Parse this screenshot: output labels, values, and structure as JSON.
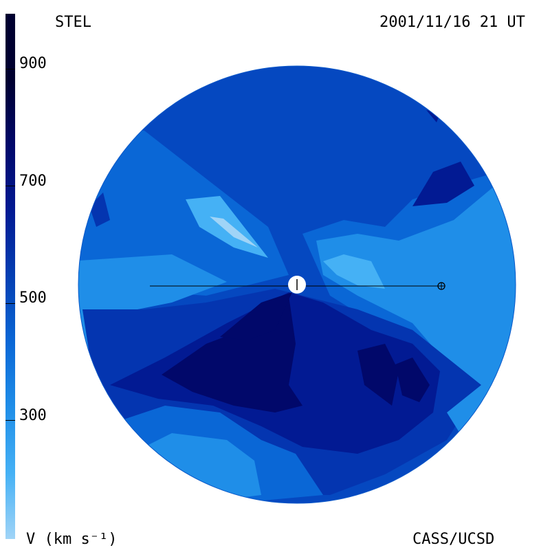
{
  "header": {
    "left_label": "STEL",
    "datetime": "2001/11/16 21 UT"
  },
  "footer": {
    "unit_label": "V (km s⁻¹)",
    "credit": "CASS/UCSD"
  },
  "colorbar": {
    "tick_labels": [
      "900",
      "700",
      "500",
      "300"
    ],
    "band_colors": [
      "#a0d4f7",
      "#45b1f5",
      "#1f8ee8",
      "#0a67d6",
      "#043fb3",
      "#021a93",
      "#01086a",
      "#000030"
    ]
  },
  "map_colors": {
    "c300": "#1f8ee8",
    "c400": "#0a67d6",
    "c500": "#0548c0",
    "c600": "#0435b0",
    "c700": "#021a93",
    "c800": "#01086a",
    "clight": "#45b1f5",
    "cpale": "#a0d4f7"
  }
}
